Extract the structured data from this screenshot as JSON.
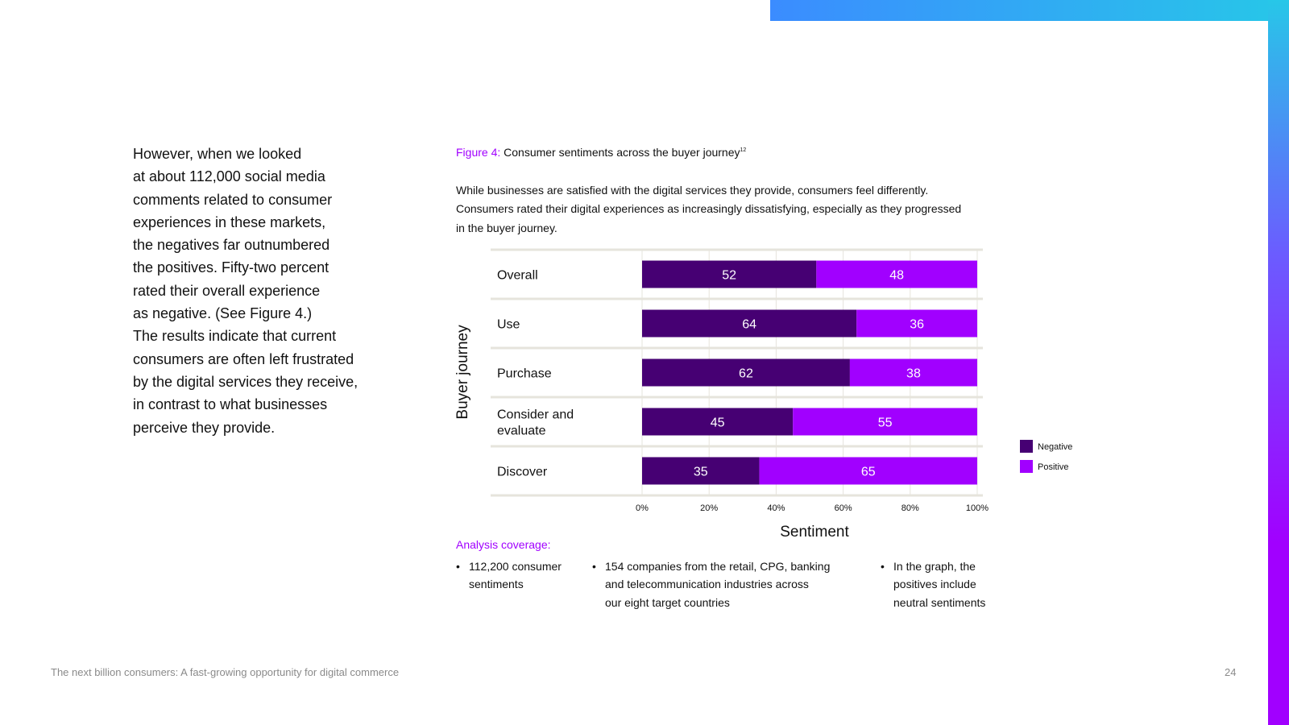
{
  "body_text": {
    "lines": [
      "However, when we looked",
      "at about 112,000 social media",
      "comments related to consumer",
      "experiences in these markets,",
      "the negatives far outnumbered",
      "the positives. Fifty-two percent",
      "rated their overall experience",
      "as negative. (See Figure 4.)",
      "The results indicate that current",
      "consumers are often left frustrated",
      "by the digital services they receive,",
      "in contrast to what businesses",
      "perceive they provide."
    ]
  },
  "figure": {
    "label": "Figure 4:",
    "caption": "Consumer sentiments across the buyer journey",
    "footnote": "12",
    "description_lines": [
      "While businesses are satisfied with the digital services they provide, consumers feel differently.",
      "Consumers rated their digital experiences as increasingly dissatisfying, especially as they progressed",
      "in the buyer journey."
    ]
  },
  "chart_data": {
    "type": "bar",
    "orientation": "horizontal",
    "stacked": true,
    "categories": [
      "Overall",
      "Use",
      "Purchase",
      "Consider and evaluate",
      "Discover"
    ],
    "category_lines": [
      [
        "Overall"
      ],
      [
        "Use"
      ],
      [
        "Purchase"
      ],
      [
        "Consider and",
        "evaluate"
      ],
      [
        "Discover"
      ]
    ],
    "series": [
      {
        "name": "Negative",
        "values": [
          52,
          64,
          62,
          45,
          35
        ],
        "color": "#460073"
      },
      {
        "name": "Positive",
        "values": [
          48,
          36,
          38,
          55,
          65
        ],
        "color": "#a100ff"
      }
    ],
    "xlabel": "Sentiment",
    "ylabel": "Buyer journey",
    "xlim": [
      0,
      100
    ],
    "xticks": [
      "0%",
      "20%",
      "40%",
      "60%",
      "80%",
      "100%"
    ],
    "legend": "right",
    "grid": true
  },
  "analysis": {
    "title": "Analysis coverage:",
    "bullet_symbol": "•",
    "bullets": [
      {
        "lines": [
          "112,200 consumer",
          "sentiments"
        ]
      },
      {
        "lines": [
          "154 companies from the retail, CPG, banking",
          "and telecommunication industries across",
          "our eight target countries"
        ]
      },
      {
        "lines": [
          "In the graph, the",
          "positives include",
          "neutral sentiments"
        ]
      }
    ]
  },
  "footer": {
    "title": "The next billion consumers: A fast-growing opportunity for digital commerce",
    "page_number": "24"
  },
  "colors": {
    "accent": "#a100ff",
    "negative": "#460073",
    "positive": "#a100ff",
    "grid": "#e6e4dc"
  }
}
